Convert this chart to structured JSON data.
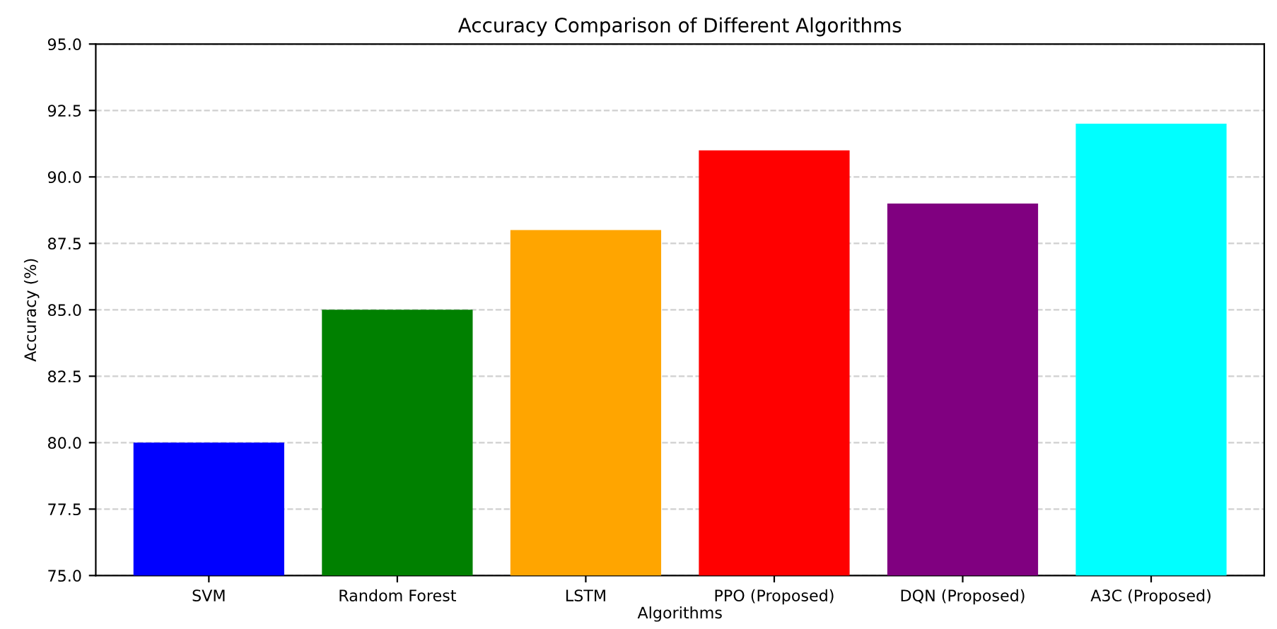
{
  "chart_data": {
    "type": "bar",
    "title": "Accuracy Comparison of Different Algorithms",
    "xlabel": "Algorithms",
    "ylabel": "Accuracy (%)",
    "categories": [
      "SVM",
      "Random Forest",
      "LSTM",
      "PPO (Proposed)",
      "DQN (Proposed)",
      "A3C (Proposed)"
    ],
    "values": [
      80,
      85,
      88,
      91,
      89,
      92
    ],
    "colors": [
      "#0000ff",
      "#008000",
      "#ffa500",
      "#ff0000",
      "#800080",
      "#00ffff"
    ],
    "ylim": [
      75,
      95
    ],
    "yticks": [
      {
        "value": 75,
        "label": "75.0"
      },
      {
        "value": 77.5,
        "label": "77.5"
      },
      {
        "value": 80,
        "label": "80.0"
      },
      {
        "value": 82.5,
        "label": "82.5"
      },
      {
        "value": 85,
        "label": "85.0"
      },
      {
        "value": 87.5,
        "label": "87.5"
      },
      {
        "value": 90,
        "label": "90.0"
      },
      {
        "value": 92.5,
        "label": "92.5"
      },
      {
        "value": 95,
        "label": "95.0"
      }
    ],
    "grid": "y",
    "line_style": "dashed"
  }
}
